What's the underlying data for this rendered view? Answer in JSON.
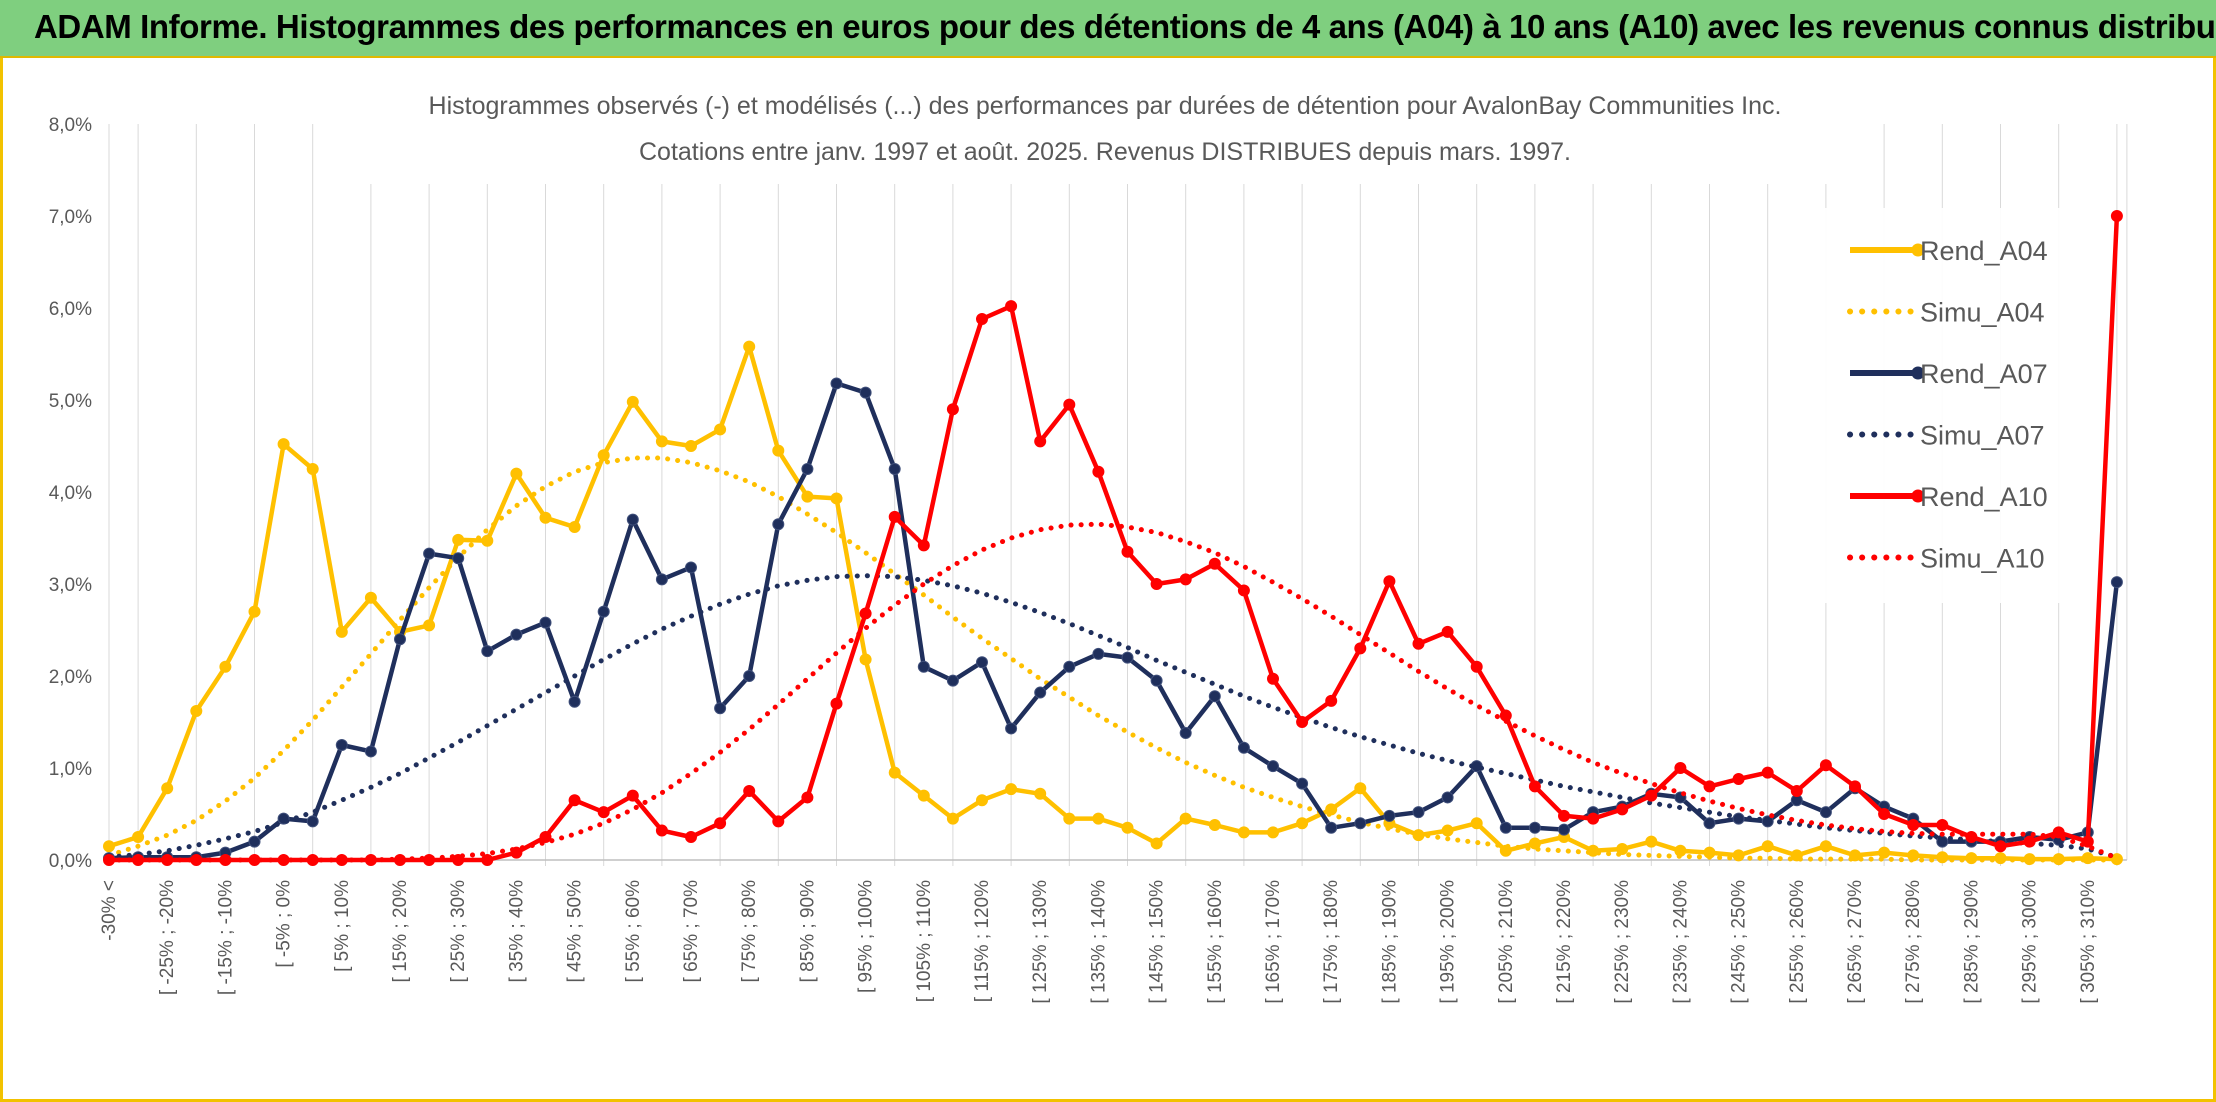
{
  "banner": {
    "title": "ADAM Informe. Histogrammes des performances en euros pour des détentions de 4 ans (A04) à 10 ans (A10) avec les revenus connus distribués"
  },
  "chart_data": {
    "type": "line",
    "title": "Histogrammes observés (-) et modélisés (...) des performances par durées de détention pour AvalonBay Communities Inc.",
    "subtitle": "Cotations entre janv. 1997 et août. 2025. Revenus DISTRIBUES depuis mars. 1997.",
    "ylim": [
      0,
      8
    ],
    "y_unit": "%",
    "y_ticks": [
      "0,0%",
      "1,0%",
      "2,0%",
      "3,0%",
      "4,0%",
      "5,0%",
      "6,0%",
      "7,0%",
      "8,0%"
    ],
    "grid": "vertical",
    "legend_position": "right",
    "x_tick_labels": [
      "-30% <",
      "[ -25% ; -20%",
      "[ -15% ; -10%",
      "[ -5% ; 0%",
      "[ 5% ; 10%",
      "[ 15% ; 20%",
      "[ 25% ; 30%",
      "[ 35% ; 40%",
      "[ 45% ; 50%",
      "[ 55% ; 60%",
      "[ 65% ; 70%",
      "[ 75% ; 80%",
      "[ 85% ; 90%",
      "[ 95% ; 100%",
      "[ 105% ; 110%",
      "[ 115% ; 120%",
      "[ 125% ; 130%",
      "[ 135% ; 140%",
      "[ 145% ; 150%",
      "[ 155% ; 160%",
      "[ 165% ; 170%",
      "[ 175% ; 180%",
      "[ 185% ; 190%",
      "[ 195% ; 200%",
      "[ 205% ; 210%",
      "[ 215% ; 220%",
      "[ 225% ; 230%",
      "[ 235% ; 240%",
      "[ 245% ; 250%",
      "[ 255% ; 260%",
      "[ 265% ; 270%",
      "[ 275% ; 280%",
      "[ 285% ; 290%",
      "[ 295% ; 300%",
      "[ 305% ; 310%"
    ],
    "x_tick_positions": [
      0,
      2,
      4,
      6,
      8,
      10,
      12,
      14,
      16,
      18,
      20,
      22,
      24,
      26,
      28,
      30,
      32,
      34,
      36,
      38,
      40,
      42,
      44,
      46,
      48,
      50,
      52,
      54,
      56,
      58,
      60,
      62,
      64,
      66,
      68
    ],
    "series": [
      {
        "name": "Rend_A04",
        "color": "#ffc000",
        "style": "solid",
        "values": [
          0.15,
          0.25,
          0.78,
          1.62,
          2.1,
          2.7,
          4.52,
          4.25,
          2.48,
          2.85,
          2.48,
          2.55,
          3.48,
          3.47,
          4.2,
          3.72,
          3.62,
          4.4,
          4.98,
          4.55,
          4.5,
          4.68,
          5.58,
          4.45,
          3.95,
          3.93,
          2.18,
          0.95,
          0.7,
          0.45,
          0.65,
          0.77,
          0.72,
          0.45,
          0.45,
          0.35,
          0.18,
          0.45,
          0.38,
          0.3,
          0.3,
          0.4,
          0.55,
          0.78,
          0.4,
          0.27,
          0.32,
          0.4,
          0.1,
          0.18,
          0.25,
          0.1,
          0.12,
          0.2,
          0.1,
          0.08,
          0.05,
          0.15,
          0.05,
          0.15,
          0.05,
          0.08,
          0.05,
          0.03,
          0.02,
          0.02,
          0.01,
          0.01,
          0.02,
          0.01
        ]
      },
      {
        "name": "Simu_A04",
        "color": "#ffc000",
        "style": "dotted",
        "values": [
          0.05,
          0.15,
          0.27,
          0.43,
          0.64,
          0.89,
          1.19,
          1.52,
          1.88,
          2.24,
          2.61,
          2.96,
          3.29,
          3.59,
          3.85,
          4.06,
          4.22,
          4.32,
          4.37,
          4.37,
          4.32,
          4.23,
          4.11,
          3.95,
          3.76,
          3.56,
          3.34,
          3.11,
          2.88,
          2.64,
          2.41,
          2.19,
          1.97,
          1.77,
          1.57,
          1.39,
          1.22,
          1.06,
          0.92,
          0.79,
          0.68,
          0.58,
          0.49,
          0.41,
          0.34,
          0.28,
          0.23,
          0.19,
          0.15,
          0.12,
          0.1,
          0.08,
          0.06,
          0.05,
          0.04,
          0.03,
          0.02,
          0.02,
          0.01,
          0.01,
          0.01,
          0.01,
          0.0,
          0.0,
          0.0,
          0.0,
          0.0,
          0.0,
          0.0,
          0.0
        ]
      },
      {
        "name": "Rend_A07",
        "color": "#1f2f5c",
        "style": "solid",
        "values": [
          0.02,
          0.03,
          0.03,
          0.03,
          0.08,
          0.2,
          0.45,
          0.42,
          1.25,
          1.18,
          2.4,
          3.33,
          3.28,
          2.27,
          2.45,
          2.58,
          1.72,
          2.7,
          3.7,
          3.05,
          3.18,
          1.65,
          2.0,
          3.65,
          4.25,
          5.18,
          5.08,
          4.25,
          2.1,
          1.95,
          2.15,
          1.43,
          1.82,
          2.1,
          2.24,
          2.2,
          1.95,
          1.38,
          1.78,
          1.22,
          1.02,
          0.83,
          0.35,
          0.4,
          0.48,
          0.52,
          0.68,
          1.02,
          0.35,
          0.35,
          0.33,
          0.52,
          0.58,
          0.72,
          0.68,
          0.4,
          0.45,
          0.42,
          0.65,
          0.52,
          0.78,
          0.58,
          0.45,
          0.2,
          0.2,
          0.2,
          0.25,
          0.22,
          0.3,
          3.02
        ]
      },
      {
        "name": "Simu_A07",
        "color": "#1f2f5c",
        "style": "dotted",
        "values": [
          0.03,
          0.06,
          0.1,
          0.16,
          0.23,
          0.31,
          0.41,
          0.52,
          0.65,
          0.79,
          0.94,
          1.11,
          1.28,
          1.46,
          1.64,
          1.82,
          2.0,
          2.18,
          2.35,
          2.51,
          2.65,
          2.78,
          2.89,
          2.98,
          3.04,
          3.08,
          3.09,
          3.08,
          3.04,
          2.98,
          2.9,
          2.8,
          2.69,
          2.57,
          2.44,
          2.31,
          2.17,
          2.04,
          1.91,
          1.78,
          1.66,
          1.55,
          1.44,
          1.34,
          1.25,
          1.16,
          1.08,
          1.01,
          0.94,
          0.87,
          0.8,
          0.74,
          0.68,
          0.62,
          0.57,
          0.52,
          0.47,
          0.43,
          0.39,
          0.35,
          0.32,
          0.29,
          0.26,
          0.24,
          0.22,
          0.2,
          0.18,
          0.16,
          0.12,
          0.03
        ]
      },
      {
        "name": "Rend_A10",
        "color": "#ff0000",
        "style": "solid",
        "values": [
          0.0,
          0.0,
          0.0,
          0.0,
          0.0,
          0.0,
          0.0,
          0.0,
          0.0,
          0.0,
          0.0,
          0.0,
          0.0,
          0.0,
          0.08,
          0.25,
          0.65,
          0.52,
          0.7,
          0.32,
          0.25,
          0.4,
          0.75,
          0.42,
          0.68,
          1.7,
          2.68,
          3.73,
          3.42,
          4.9,
          5.88,
          6.02,
          4.55,
          4.95,
          4.22,
          3.35,
          3.0,
          3.05,
          3.22,
          2.93,
          1.97,
          1.5,
          1.73,
          2.3,
          3.03,
          2.35,
          2.48,
          2.1,
          1.57,
          0.8,
          0.48,
          0.45,
          0.55,
          0.7,
          1.0,
          0.8,
          0.88,
          0.95,
          0.75,
          1.03,
          0.8,
          0.5,
          0.38,
          0.38,
          0.25,
          0.15,
          0.2,
          0.3,
          0.2,
          7.0
        ]
      },
      {
        "name": "Simu_A10",
        "color": "#ff0000",
        "style": "dotted",
        "values": [
          0.0,
          0.0,
          0.0,
          0.0,
          0.0,
          0.0,
          0.0,
          0.0,
          0.0,
          0.0,
          0.01,
          0.02,
          0.04,
          0.07,
          0.12,
          0.19,
          0.28,
          0.4,
          0.55,
          0.73,
          0.94,
          1.17,
          1.42,
          1.69,
          1.97,
          2.25,
          2.52,
          2.77,
          3.0,
          3.2,
          3.37,
          3.5,
          3.59,
          3.64,
          3.65,
          3.62,
          3.56,
          3.46,
          3.34,
          3.19,
          3.02,
          2.84,
          2.65,
          2.45,
          2.25,
          2.05,
          1.86,
          1.68,
          1.51,
          1.35,
          1.2,
          1.06,
          0.94,
          0.83,
          0.73,
          0.64,
          0.56,
          0.49,
          0.43,
          0.38,
          0.34,
          0.31,
          0.29,
          0.28,
          0.28,
          0.28,
          0.28,
          0.25,
          0.15,
          0.02
        ]
      }
    ]
  }
}
